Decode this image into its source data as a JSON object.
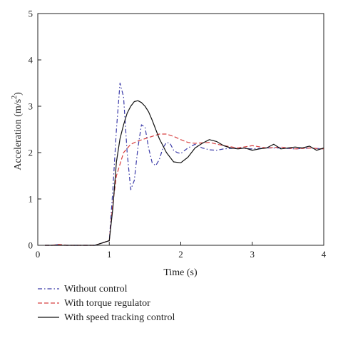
{
  "chart_data": {
    "type": "line",
    "xlabel": "Time (s)",
    "ylabel_main": "Acceleration (m/s",
    "ylabel_sup": "2",
    "ylabel_close": ")",
    "xlim": [
      0,
      4
    ],
    "ylim": [
      0,
      5
    ],
    "xticks": [
      "0",
      "1",
      "2",
      "3",
      "4"
    ],
    "yticks": [
      "0",
      "1",
      "2",
      "3",
      "4",
      "5"
    ],
    "grid": false,
    "legend_position": "bottom-left",
    "series": [
      {
        "name": "Without control",
        "color": "#3a3aa8",
        "dash": "dash-dot",
        "x": [
          0.1,
          0.2,
          0.3,
          0.4,
          0.5,
          0.6,
          0.7,
          0.8,
          0.9,
          1.0,
          1.05,
          1.1,
          1.15,
          1.2,
          1.25,
          1.3,
          1.35,
          1.4,
          1.45,
          1.5,
          1.55,
          1.6,
          1.65,
          1.7,
          1.75,
          1.8,
          1.85,
          1.9,
          1.95,
          2.0,
          2.1,
          2.2,
          2.3,
          2.4,
          2.5,
          2.6,
          2.8,
          3.0,
          3.2,
          3.4,
          3.6,
          3.8,
          4.0
        ],
        "y": [
          0.0,
          0.0,
          0.02,
          0.0,
          0.0,
          0.0,
          0.0,
          0.0,
          0.05,
          0.1,
          1.2,
          2.5,
          3.5,
          3.2,
          2.0,
          1.2,
          1.4,
          2.1,
          2.6,
          2.55,
          2.1,
          1.78,
          1.72,
          1.85,
          2.1,
          2.22,
          2.2,
          2.05,
          2.0,
          1.98,
          2.1,
          2.18,
          2.1,
          2.06,
          2.05,
          2.08,
          2.1,
          2.08,
          2.1,
          2.1,
          2.08,
          2.1,
          2.08
        ]
      },
      {
        "name": "With torque regulator",
        "color": "#d84040",
        "dash": "dashed",
        "x": [
          0.1,
          0.2,
          0.3,
          0.4,
          0.5,
          0.6,
          0.7,
          0.8,
          0.9,
          1.0,
          1.05,
          1.1,
          1.2,
          1.3,
          1.4,
          1.5,
          1.6,
          1.7,
          1.8,
          1.9,
          2.0,
          2.1,
          2.2,
          2.4,
          2.6,
          2.8,
          3.0,
          3.2,
          3.4,
          3.6,
          3.8,
          4.0
        ],
        "y": [
          0.0,
          0.0,
          0.02,
          0.0,
          0.0,
          0.0,
          0.0,
          0.0,
          0.05,
          0.1,
          0.9,
          1.5,
          2.0,
          2.18,
          2.25,
          2.3,
          2.35,
          2.4,
          2.4,
          2.35,
          2.28,
          2.22,
          2.2,
          2.22,
          2.15,
          2.1,
          2.15,
          2.1,
          2.12,
          2.08,
          2.1,
          2.08
        ]
      },
      {
        "name": "With speed tracking control",
        "color": "#111111",
        "dash": "solid",
        "x": [
          0.1,
          0.2,
          0.3,
          0.4,
          0.5,
          0.6,
          0.7,
          0.8,
          0.9,
          1.0,
          1.05,
          1.1,
          1.15,
          1.2,
          1.25,
          1.3,
          1.35,
          1.4,
          1.45,
          1.5,
          1.55,
          1.6,
          1.7,
          1.8,
          1.9,
          2.0,
          2.1,
          2.2,
          2.3,
          2.4,
          2.5,
          2.6,
          2.7,
          2.8,
          2.9,
          3.0,
          3.1,
          3.2,
          3.3,
          3.4,
          3.5,
          3.6,
          3.7,
          3.8,
          3.9,
          4.0
        ],
        "y": [
          0.0,
          0.0,
          0.0,
          0.0,
          0.0,
          0.0,
          0.0,
          0.0,
          0.05,
          0.1,
          0.8,
          1.8,
          2.3,
          2.6,
          2.85,
          3.0,
          3.1,
          3.12,
          3.08,
          3.0,
          2.88,
          2.7,
          2.3,
          2.0,
          1.8,
          1.78,
          1.9,
          2.1,
          2.2,
          2.28,
          2.24,
          2.15,
          2.1,
          2.08,
          2.1,
          2.05,
          2.08,
          2.1,
          2.18,
          2.08,
          2.1,
          2.12,
          2.1,
          2.14,
          2.05,
          2.1
        ]
      }
    ]
  }
}
